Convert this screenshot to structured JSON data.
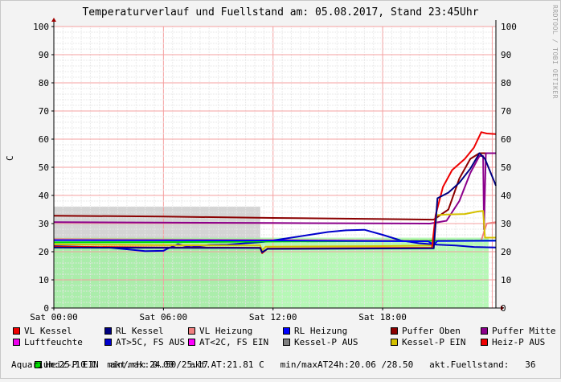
{
  "chart_data": {
    "type": "line",
    "title": "Temperaturverlauf und Fuellstand am: 05.08.2017, Stand 23:45Uhr",
    "ylabel": "C",
    "watermark": "RRDTOOL / TOBI OETIKER",
    "ylim": [
      0,
      100
    ],
    "yticks": [
      "0",
      "10",
      "20",
      "30",
      "40",
      "50",
      "60",
      "70",
      "80",
      "90",
      "100"
    ],
    "xticks": [
      {
        "label": "Sat 00:00",
        "h": 0
      },
      {
        "label": "Sat 06:00",
        "h": 6
      },
      {
        "label": "Sat 12:00",
        "h": 12
      },
      {
        "label": "Sat 18:00",
        "h": 18
      }
    ],
    "xlim_hours": [
      0,
      24.2
    ],
    "areas": [
      {
        "name": "Kessel-P AUS",
        "color": "#a0a0a0",
        "from_h": 0,
        "to_h": 11.3,
        "value": 36
      },
      {
        "name": "Heiz-P EIN",
        "color": "#9ef59e",
        "from_h": 0,
        "to_h": 23.8,
        "value": 25
      }
    ],
    "series": [
      {
        "name": "Puffer Oben",
        "color": "#8b0000",
        "points": [
          [
            0,
            32.8
          ],
          [
            6,
            32.5
          ],
          [
            12,
            32
          ],
          [
            18,
            31.6
          ],
          [
            20.8,
            31.4
          ],
          [
            21.6,
            35
          ],
          [
            22.2,
            46
          ],
          [
            22.8,
            53
          ],
          [
            23.3,
            55
          ],
          [
            23.5,
            55
          ],
          [
            24.2,
            55
          ]
        ]
      },
      {
        "name": "Puffer Mitte",
        "color": "#8b008b",
        "points": [
          [
            0,
            30.5
          ],
          [
            12,
            30.2
          ],
          [
            20.6,
            30
          ],
          [
            21.5,
            31
          ],
          [
            22.2,
            38
          ],
          [
            22.8,
            48
          ],
          [
            23.3,
            54
          ],
          [
            23.5,
            54
          ],
          [
            23.55,
            28
          ],
          [
            23.65,
            55
          ],
          [
            24.2,
            55
          ]
        ]
      },
      {
        "name": "VL Heizung",
        "color": "#f08080",
        "points": [
          [
            0,
            24.5
          ],
          [
            12,
            24.2
          ],
          [
            20,
            24
          ],
          [
            22,
            24
          ],
          [
            23.4,
            24
          ],
          [
            23.7,
            30
          ],
          [
            24.2,
            30.5
          ]
        ]
      },
      {
        "name": "AT>5C, FS AUS",
        "color": "#0000cc",
        "points": [
          [
            0,
            22
          ],
          [
            3,
            21.5
          ],
          [
            5,
            20.2
          ],
          [
            6,
            20.3
          ],
          [
            6.2,
            21
          ],
          [
            6.8,
            22.7
          ],
          [
            7.5,
            21.6
          ],
          [
            8.5,
            22.4
          ],
          [
            9.5,
            22.5
          ],
          [
            10.5,
            23
          ],
          [
            11.5,
            23.5
          ],
          [
            12,
            24
          ],
          [
            13,
            25
          ],
          [
            14,
            26
          ],
          [
            15,
            27
          ],
          [
            16,
            27.6
          ],
          [
            17,
            27.8
          ],
          [
            18,
            26
          ],
          [
            19,
            24
          ],
          [
            20,
            23
          ],
          [
            21,
            22.5
          ],
          [
            22,
            22.2
          ],
          [
            23,
            21.7
          ],
          [
            24.2,
            21.5
          ]
        ]
      },
      {
        "name": "Heiz-P EIN",
        "color": "#00dd00",
        "points": [
          [
            0,
            23.3
          ],
          [
            6,
            23.4
          ],
          [
            12,
            23.6
          ],
          [
            18,
            23.8
          ],
          [
            24.2,
            24
          ]
        ]
      },
      {
        "name": "RL Heizung",
        "color": "#0000ff",
        "points": [
          [
            0,
            24.1
          ],
          [
            12,
            24
          ],
          [
            20.5,
            23.7
          ],
          [
            20.8,
            22.5
          ],
          [
            21,
            23.8
          ],
          [
            24.2,
            23.9
          ]
        ]
      },
      {
        "name": "Kessel-P EIN",
        "color": "#d4c000",
        "points": [
          [
            0,
            22.6
          ],
          [
            6,
            22.3
          ],
          [
            11.3,
            22.2
          ],
          [
            11.4,
            20.5
          ],
          [
            11.6,
            21.8
          ],
          [
            18,
            22
          ],
          [
            20.8,
            22.2
          ],
          [
            20.95,
            33
          ],
          [
            21.5,
            33.2
          ],
          [
            22.5,
            33.4
          ],
          [
            23.2,
            34.3
          ],
          [
            23.5,
            34.5
          ],
          [
            23.6,
            25
          ],
          [
            24.2,
            25
          ]
        ]
      },
      {
        "name": "VL Kessel",
        "color": "#ee0000",
        "points": [
          [
            0,
            21.8
          ],
          [
            6,
            21.5
          ],
          [
            11.3,
            21.4
          ],
          [
            11.4,
            19.5
          ],
          [
            11.7,
            21.1
          ],
          [
            18,
            21.3
          ],
          [
            20.7,
            21.4
          ],
          [
            20.9,
            33
          ],
          [
            21.3,
            43
          ],
          [
            21.8,
            49
          ],
          [
            22.5,
            53
          ],
          [
            23,
            57
          ],
          [
            23.4,
            62.5
          ],
          [
            23.7,
            62
          ],
          [
            24.2,
            61.8
          ]
        ]
      },
      {
        "name": "RL Kessel",
        "color": "#000080",
        "points": [
          [
            0,
            21.5
          ],
          [
            11.3,
            21.3
          ],
          [
            11.4,
            19.8
          ],
          [
            11.7,
            21
          ],
          [
            20.8,
            21.2
          ],
          [
            21,
            39
          ],
          [
            21.6,
            41
          ],
          [
            22.2,
            44.5
          ],
          [
            22.8,
            49.5
          ],
          [
            23.3,
            55
          ],
          [
            23.6,
            53
          ],
          [
            24.2,
            43.5
          ]
        ]
      }
    ]
  },
  "legend": {
    "rows": [
      [
        {
          "label": "VL Kessel",
          "color": "#ee0000"
        },
        {
          "label": "RL Kessel",
          "color": "#000080"
        },
        {
          "label": "VL Heizung",
          "color": "#f08080"
        },
        {
          "label": "RL Heizung",
          "color": "#0000ff"
        },
        {
          "label": "Puffer Oben",
          "color": "#8b0000"
        },
        {
          "label": "Puffer Mitte",
          "color": "#8b008b"
        }
      ],
      [
        {
          "label": "Luftfeuchte",
          "color": "#ee00ee"
        },
        {
          "label": "AT>5C, FS AUS",
          "color": "#0000cc"
        },
        {
          "label": "AT<2C, FS EIN",
          "color": "#ff00ff"
        },
        {
          "label": "Kessel-P AUS",
          "color": "#808080"
        },
        {
          "label": "Kessel-P EIN",
          "color": "#d4c000"
        },
        {
          "label": "Heiz-P AUS",
          "color": "#ee0000"
        }
      ]
    ],
    "heizp_label": "Heiz-P EIN",
    "heizp_color": "#00dd00",
    "status_line1": "akt.rH: 0.00   akt.AT:21.81 C   min/maxAT24h:20.06 /28.50   akt.Fuellstand:   36",
    "status_line2": "Aquarium:25.10 C  min/max:24.50/25.17"
  }
}
